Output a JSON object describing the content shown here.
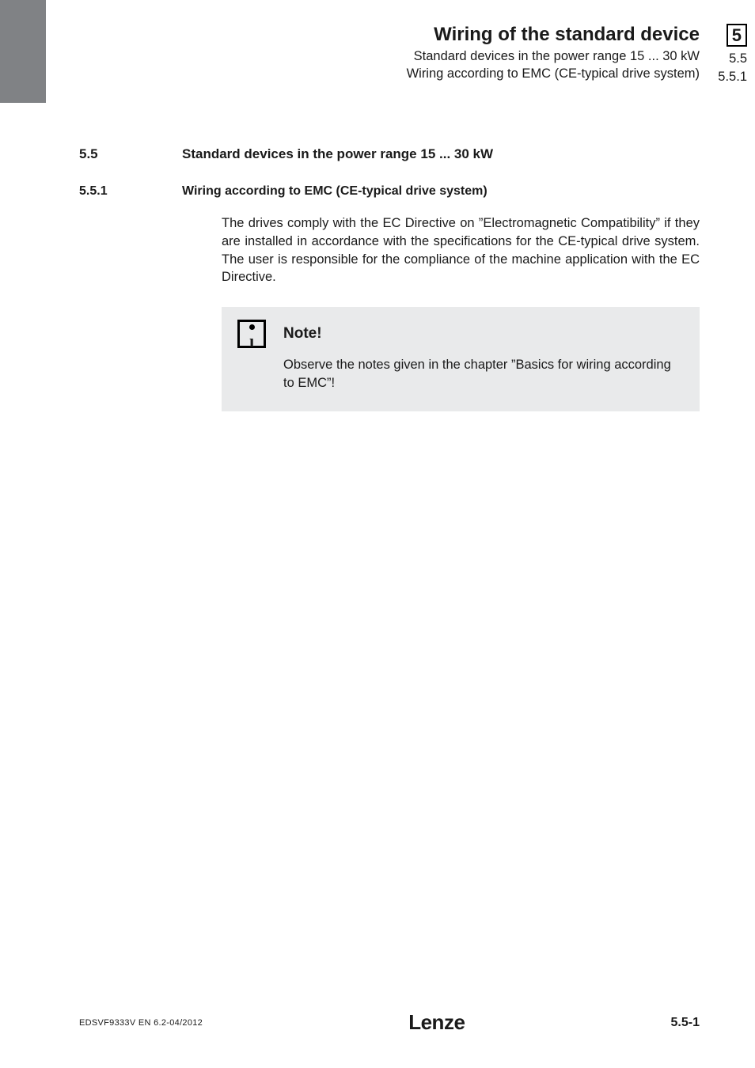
{
  "header": {
    "title": "Wiring of the standard device",
    "subtitle1": "Standard devices in the power range 15 ... 30 kW",
    "subtitle2": "Wiring according to EMC (CE-typical drive system)",
    "chapter": "5",
    "section": "5.5",
    "subsection": "5.5.1"
  },
  "section": {
    "num": "5.5",
    "title": "Standard devices in the power range 15 ... 30 kW"
  },
  "subsection": {
    "num": "5.5.1",
    "title": "Wiring according to EMC (CE-typical drive system)"
  },
  "paragraph": "The drives comply with the EC Directive on ”Electromagnetic Compatibility” if they are installed in accordance with the specifications for the CE-typical drive system. The user is responsible for the compliance of the machine application with the EC Directive.",
  "note": {
    "title": "Note!",
    "body": "Observe the notes given in the chapter ”Basics for wiring according to EMC”!"
  },
  "footer": {
    "docid": "EDSVF9333V  EN  6.2-04/2012",
    "logo": "Lenze",
    "page": "5.5-1"
  },
  "colors": {
    "sidebar": "#808285",
    "note_bg": "#e9eaeb",
    "text": "#1a1a1a"
  }
}
